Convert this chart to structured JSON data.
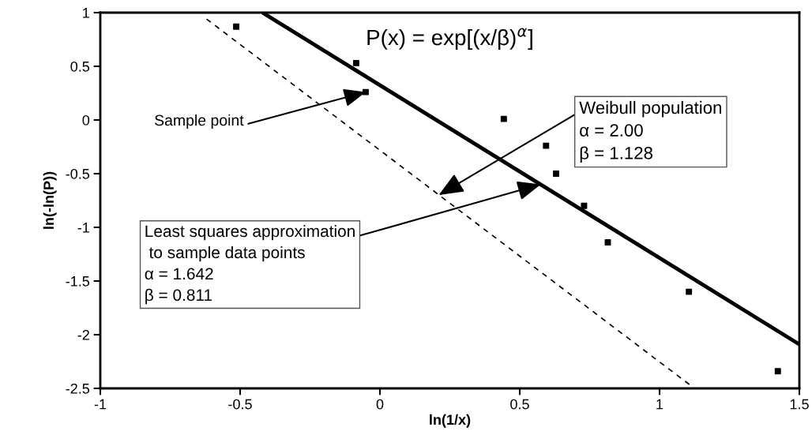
{
  "chart_data": {
    "type": "scatter",
    "xlabel": "ln(1/x)",
    "ylabel": "ln(-ln(P))",
    "xlim": [
      -1,
      1.5
    ],
    "xticks": [
      -1,
      -0.5,
      0,
      0.5,
      1,
      1.5
    ],
    "ylim": [
      -2.5,
      1
    ],
    "yticks": [
      1,
      0.5,
      0,
      -0.5,
      -1,
      -1.5,
      -2,
      -2.5
    ],
    "grid": false,
    "legend": false,
    "series": [
      {
        "color": "#000000",
        "marker": "square",
        "x": [
          -0.514,
          -0.085,
          -0.051,
          0.443,
          0.594,
          0.63,
          0.73,
          0.815,
          1.105,
          1.423
        ],
        "values": [
          0.87,
          0.53,
          0.26,
          0.01,
          -0.24,
          -0.5,
          -0.8,
          -1.14,
          -1.6,
          -2.34
        ]
      },
      {
        "type": "line",
        "color": "#000000",
        "line_style": "solid",
        "x": [
          -0.42,
          1.5
        ],
        "values": [
          1,
          -2.09
        ]
      },
      {
        "type": "line",
        "color": "#000000",
        "line_style": "dashed",
        "x": [
          -0.62,
          1.125
        ],
        "values": [
          0.94,
          -2.5
        ]
      }
    ],
    "annotations": [
      "P(x) = exp[(x/β)$^{α}$]",
      {
        "text": "Sample point",
        "x": -0.051,
        "y": 0.26
      },
      {
        "text": "Weibull population\nα = 2.00\nβ = 1.128",
        "x": 0.21,
        "y": -0.7
      },
      {
        "text": "Least squares approximation\n to sample data points\nα = 1.642\nβ = 0.811",
        "x": 0.575,
        "y": -0.6
      }
    ]
  }
}
